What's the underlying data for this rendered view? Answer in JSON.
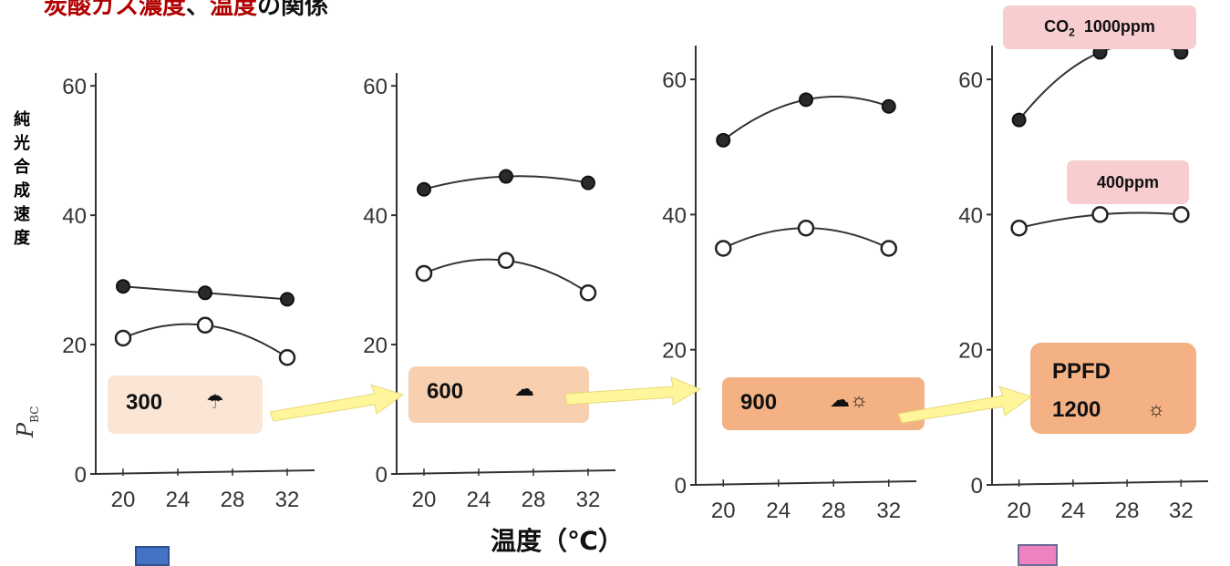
{
  "title": {
    "part1": "炭酸ガス濃度",
    "sep": "、",
    "part2": "温度",
    "part3": "の関係"
  },
  "y_axis_label": "純光合成速度",
  "y_axis_symbol": "P",
  "y_axis_symbol_sub": "BC",
  "x_axis_label": "温度（℃）",
  "co2_labels": {
    "high_prefix": "CO",
    "high_sub": "2",
    "high_value": "1000ppm",
    "low": "400ppm"
  },
  "ppfd_label": "PPFD",
  "light_levels": [
    {
      "ppfd": "300",
      "icon": "umbrella-icon",
      "glyph": "☂"
    },
    {
      "ppfd": "600",
      "icon": "cloud-icon",
      "glyph": "☁"
    },
    {
      "ppfd": "900",
      "icon": "cloud-sun-icon",
      "glyph": "☁☼"
    },
    {
      "ppfd": "1200",
      "icon": "sun-icon",
      "glyph": "☼"
    }
  ],
  "colors": {
    "title_accent": "#b00000",
    "box_300": "#fbe6d6",
    "box_600": "#f8d0b0",
    "box_900": "#f4b183",
    "box_1200": "#f4b183",
    "co2_box": "#f7cdd0",
    "arrow": "#fff59a",
    "marker_left": "#4472c4",
    "marker_right": "#ee82c0"
  },
  "chart_data": [
    {
      "type": "line",
      "ppfd": 300,
      "x": [
        20,
        26,
        32
      ],
      "xticks": [
        20,
        24,
        28,
        32
      ],
      "yticks": [
        0,
        20,
        40,
        60
      ],
      "ylim": [
        0,
        62
      ],
      "xlim": [
        18,
        34
      ],
      "series": [
        {
          "values": [
            29,
            28,
            27
          ],
          "marker": "filled"
        },
        {
          "values": [
            21,
            23,
            18
          ],
          "marker": "open"
        }
      ]
    },
    {
      "type": "line",
      "ppfd": 600,
      "x": [
        20,
        26,
        32
      ],
      "xticks": [
        20,
        24,
        28,
        32
      ],
      "yticks": [
        0,
        20,
        40,
        60
      ],
      "ylim": [
        0,
        62
      ],
      "xlim": [
        18,
        34
      ],
      "series": [
        {
          "values": [
            44,
            46,
            45
          ],
          "marker": "filled"
        },
        {
          "values": [
            31,
            33,
            28
          ],
          "marker": "open"
        }
      ]
    },
    {
      "type": "line",
      "ppfd": 900,
      "x": [
        20,
        26,
        32
      ],
      "xticks": [
        20,
        24,
        28,
        32
      ],
      "yticks": [
        0,
        20,
        40,
        60
      ],
      "ylim": [
        0,
        65
      ],
      "xlim": [
        18,
        34
      ],
      "series": [
        {
          "name": "1000ppm",
          "values": [
            51,
            57,
            56
          ],
          "marker": "filled"
        },
        {
          "name": "400ppm",
          "values": [
            35,
            38,
            35
          ],
          "marker": "open"
        }
      ]
    },
    {
      "type": "line",
      "ppfd": 1200,
      "x": [
        20,
        26,
        32
      ],
      "xticks": [
        20,
        24,
        28,
        32
      ],
      "yticks": [
        0,
        20,
        40,
        60
      ],
      "ylim": [
        0,
        65
      ],
      "xlim": [
        18,
        34
      ],
      "series": [
        {
          "name": "1000ppm",
          "values": [
            54,
            64,
            64
          ],
          "marker": "filled"
        },
        {
          "name": "400ppm",
          "values": [
            38,
            40,
            40
          ],
          "marker": "open"
        }
      ]
    }
  ]
}
